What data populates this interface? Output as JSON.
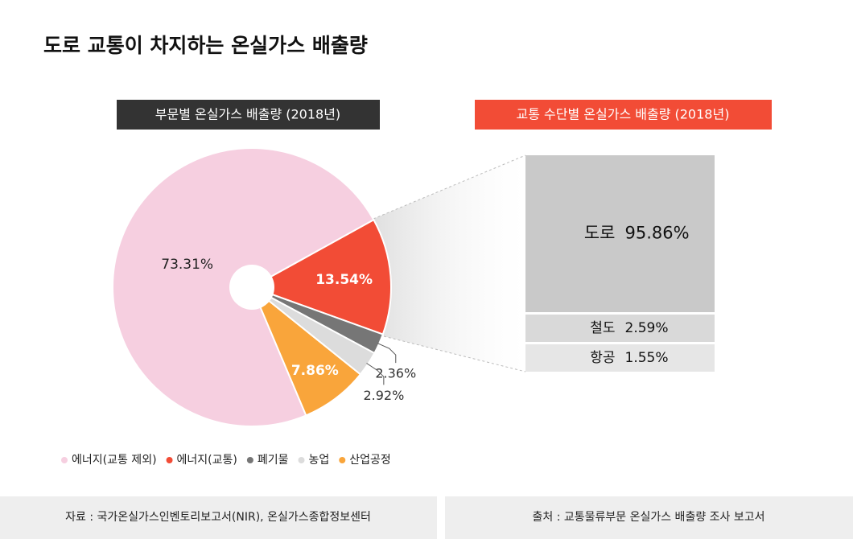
{
  "title": "도로 교통이 차지하는 온실가스 배출량",
  "chart_data": [
    {
      "type": "pie",
      "title": "부문별 온실가스 배출량 (2018년)",
      "categories": [
        "에너지(교통 제외)",
        "에너지(교통)",
        "폐기물",
        "농업",
        "산업공정"
      ],
      "values": [
        73.31,
        13.54,
        2.36,
        2.92,
        7.86
      ],
      "value_labels": [
        "73.31%",
        "13.54%",
        "2.36%",
        "2.92%",
        "7.86%"
      ],
      "colors": [
        "#f6cfe0",
        "#f24c36",
        "#767676",
        "#dcdcdc",
        "#f9a53b"
      ]
    },
    {
      "type": "stacked-bar",
      "title": "교통 수단별 온실가스 배출량 (2018년)",
      "categories": [
        "도로",
        "철도",
        "항공"
      ],
      "values": [
        95.86,
        2.59,
        1.55
      ],
      "value_labels": [
        "95.86%",
        "2.59%",
        "1.55%"
      ],
      "colors": [
        "#c9c9c9",
        "#d9d9d9",
        "#e6e6e6"
      ]
    }
  ],
  "footer": {
    "source": "자료 : 국가온실가스인벤토리보고서(NIR), 온실가스종합정보센터",
    "note": "출처 : 교통물류부문 온실가스 배출량 조사 보고서"
  }
}
